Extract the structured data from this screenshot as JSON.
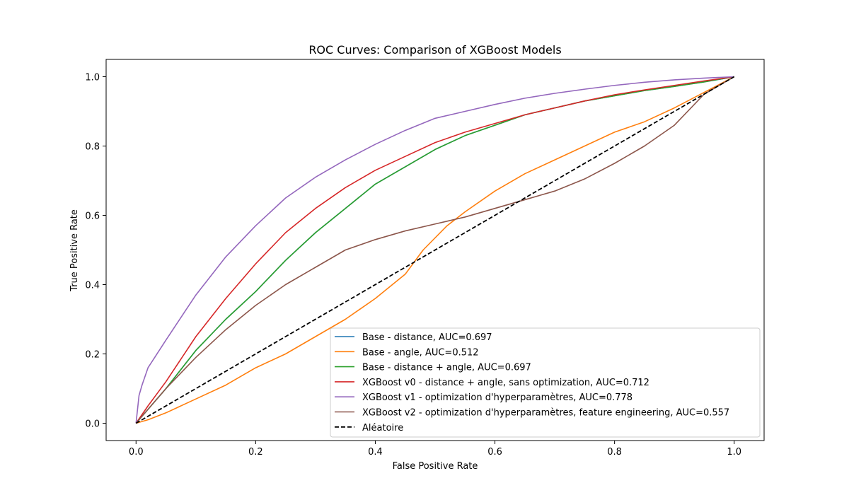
{
  "chart_data": {
    "type": "line",
    "title": "ROC Curves: Comparison of XGBoost Models",
    "xlabel": "False Positive Rate",
    "ylabel": "True Positive Rate",
    "xlim": [
      -0.05,
      1.05
    ],
    "ylim": [
      -0.05,
      1.05
    ],
    "xticks": [
      0.0,
      0.2,
      0.4,
      0.6,
      0.8,
      1.0
    ],
    "yticks": [
      0.0,
      0.2,
      0.4,
      0.6,
      0.8,
      1.0
    ],
    "xtick_labels": [
      "0.0",
      "0.2",
      "0.4",
      "0.6",
      "0.8",
      "1.0"
    ],
    "ytick_labels": [
      "0.0",
      "0.2",
      "0.4",
      "0.6",
      "0.8",
      "1.0"
    ],
    "grid": false,
    "legend_position": "lower-right",
    "series": [
      {
        "name": "Base - distance, AUC=0.697",
        "color": "#1f77b4",
        "dashed": false,
        "x": [
          0.0,
          0.02,
          0.05,
          0.1,
          0.15,
          0.2,
          0.25,
          0.3,
          0.35,
          0.4,
          0.45,
          0.5,
          0.55,
          0.6,
          0.65,
          0.7,
          0.75,
          0.8,
          0.85,
          0.9,
          0.95,
          1.0
        ],
        "y": [
          0.0,
          0.04,
          0.1,
          0.21,
          0.3,
          0.38,
          0.47,
          0.55,
          0.62,
          0.69,
          0.74,
          0.79,
          0.83,
          0.86,
          0.89,
          0.91,
          0.93,
          0.945,
          0.96,
          0.972,
          0.985,
          1.0
        ]
      },
      {
        "name": "Base - angle, AUC=0.512",
        "color": "#ff7f0e",
        "dashed": false,
        "x": [
          0.0,
          0.02,
          0.05,
          0.1,
          0.15,
          0.2,
          0.25,
          0.3,
          0.35,
          0.4,
          0.45,
          0.48,
          0.52,
          0.55,
          0.6,
          0.65,
          0.7,
          0.75,
          0.8,
          0.85,
          0.9,
          0.95,
          1.0
        ],
        "y": [
          0.0,
          0.01,
          0.03,
          0.07,
          0.11,
          0.16,
          0.2,
          0.25,
          0.3,
          0.36,
          0.43,
          0.5,
          0.57,
          0.61,
          0.67,
          0.72,
          0.76,
          0.8,
          0.84,
          0.87,
          0.91,
          0.955,
          1.0
        ]
      },
      {
        "name": "Base - distance + angle, AUC=0.697",
        "color": "#2ca02c",
        "dashed": false,
        "x": [
          0.0,
          0.02,
          0.05,
          0.1,
          0.15,
          0.2,
          0.25,
          0.3,
          0.35,
          0.4,
          0.45,
          0.5,
          0.55,
          0.6,
          0.65,
          0.7,
          0.75,
          0.8,
          0.85,
          0.9,
          0.95,
          1.0
        ],
        "y": [
          0.0,
          0.04,
          0.1,
          0.21,
          0.3,
          0.38,
          0.47,
          0.55,
          0.62,
          0.69,
          0.74,
          0.79,
          0.83,
          0.86,
          0.89,
          0.91,
          0.93,
          0.945,
          0.96,
          0.972,
          0.985,
          1.0
        ]
      },
      {
        "name": "XGBoost v0 - distance + angle, sans optimization, AUC=0.712",
        "color": "#d62728",
        "dashed": false,
        "x": [
          0.0,
          0.02,
          0.05,
          0.1,
          0.15,
          0.2,
          0.25,
          0.3,
          0.35,
          0.4,
          0.45,
          0.5,
          0.55,
          0.6,
          0.65,
          0.7,
          0.75,
          0.8,
          0.85,
          0.9,
          0.95,
          1.0
        ],
        "y": [
          0.0,
          0.05,
          0.12,
          0.25,
          0.36,
          0.46,
          0.55,
          0.62,
          0.68,
          0.73,
          0.77,
          0.81,
          0.84,
          0.865,
          0.89,
          0.91,
          0.93,
          0.948,
          0.962,
          0.975,
          0.988,
          1.0
        ]
      },
      {
        "name": "XGBoost v1 - optimization d'hyperparamètres, AUC=0.778",
        "color": "#9467bd",
        "dashed": false,
        "x": [
          0.0,
          0.005,
          0.01,
          0.02,
          0.05,
          0.1,
          0.15,
          0.2,
          0.25,
          0.3,
          0.35,
          0.4,
          0.45,
          0.5,
          0.55,
          0.6,
          0.65,
          0.7,
          0.75,
          0.8,
          0.85,
          0.9,
          0.95,
          1.0
        ],
        "y": [
          0.0,
          0.08,
          0.11,
          0.16,
          0.24,
          0.37,
          0.48,
          0.57,
          0.65,
          0.71,
          0.76,
          0.805,
          0.845,
          0.88,
          0.9,
          0.92,
          0.938,
          0.952,
          0.964,
          0.975,
          0.984,
          0.991,
          0.996,
          1.0
        ]
      },
      {
        "name": "XGBoost v2 - optimization d'hyperparamètres, feature engineering, AUC=0.557",
        "color": "#8c564b",
        "dashed": false,
        "x": [
          0.0,
          0.02,
          0.05,
          0.1,
          0.15,
          0.2,
          0.25,
          0.3,
          0.35,
          0.4,
          0.45,
          0.5,
          0.55,
          0.6,
          0.65,
          0.7,
          0.75,
          0.8,
          0.85,
          0.9,
          0.95,
          1.0
        ],
        "y": [
          0.0,
          0.04,
          0.1,
          0.19,
          0.27,
          0.34,
          0.4,
          0.45,
          0.5,
          0.53,
          0.555,
          0.575,
          0.595,
          0.62,
          0.645,
          0.67,
          0.705,
          0.75,
          0.8,
          0.86,
          0.95,
          1.0
        ]
      },
      {
        "name": "Aléatoire",
        "color": "#000000",
        "dashed": true,
        "x": [
          0.0,
          1.0
        ],
        "y": [
          0.0,
          1.0
        ]
      }
    ]
  }
}
